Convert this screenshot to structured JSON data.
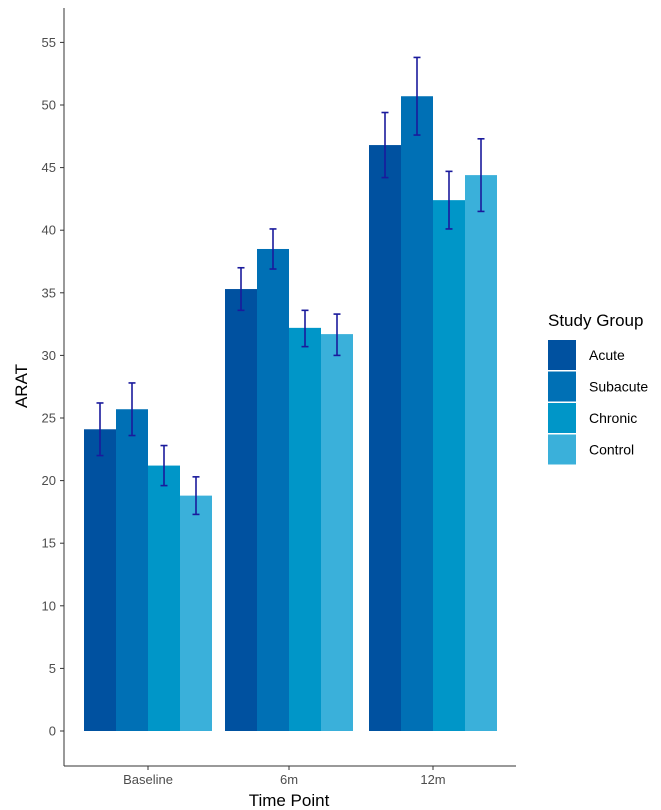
{
  "chart_data": {
    "type": "bar",
    "title": "",
    "xlabel": "Time Point",
    "ylabel": "ARAT",
    "categories": [
      "Baseline",
      "6m",
      "12m"
    ],
    "ylim": [
      0,
      55
    ],
    "yticks": [
      0,
      5,
      10,
      15,
      20,
      25,
      30,
      35,
      40,
      45,
      50,
      55
    ],
    "grid": false,
    "legend": {
      "title": "Study Group",
      "position": "right"
    },
    "error_bar_color": "#1a1a9c",
    "series": [
      {
        "name": "Acute",
        "color": "#0051A0",
        "values": [
          24.1,
          35.3,
          46.8
        ],
        "err_low": [
          22.0,
          33.6,
          44.2
        ],
        "err_high": [
          26.2,
          37.0,
          49.4
        ]
      },
      {
        "name": "Subacute",
        "color": "#0070B5",
        "values": [
          25.7,
          38.5,
          50.7
        ],
        "err_low": [
          23.6,
          36.9,
          47.6
        ],
        "err_high": [
          27.8,
          40.1,
          53.8
        ]
      },
      {
        "name": "Chronic",
        "color": "#0096C8",
        "values": [
          21.2,
          32.2,
          42.4
        ],
        "err_low": [
          19.6,
          30.7,
          40.1
        ],
        "err_high": [
          22.8,
          33.6,
          44.7
        ]
      },
      {
        "name": "Control",
        "color": "#3AB0DA",
        "values": [
          18.8,
          31.7,
          44.4
        ],
        "err_low": [
          17.3,
          30.0,
          41.5
        ],
        "err_high": [
          20.3,
          33.3,
          47.3
        ]
      }
    ]
  }
}
